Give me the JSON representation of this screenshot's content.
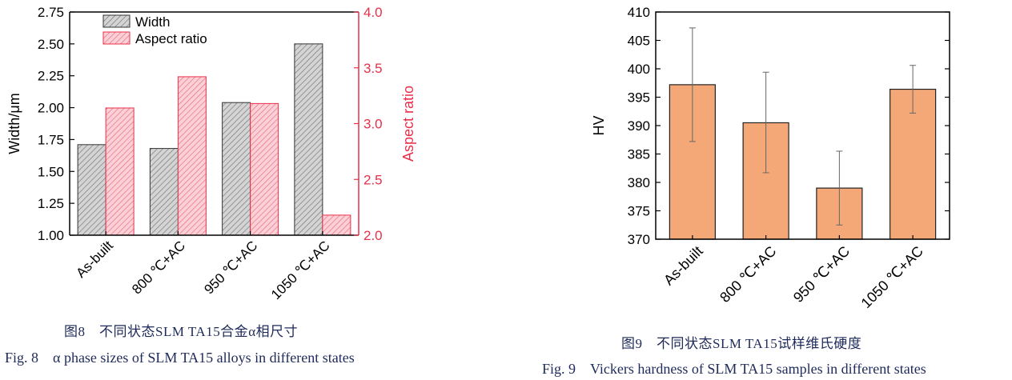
{
  "figure8": {
    "caption_zh": "图8　不同状态SLM TA15合金α相尺寸",
    "caption_en": "Fig. 8　α phase sizes of SLM TA15 alloys in different states",
    "chart_data": {
      "type": "bar",
      "categories": [
        "As-built",
        "800 ℃+AC",
        "950 ℃+AC",
        "1050 ℃+AC"
      ],
      "series": [
        {
          "name": "Width",
          "values": [
            1.71,
            1.68,
            2.04,
            2.5
          ],
          "axis": "left",
          "color": "#555555",
          "hatch": "gray-diagonal"
        },
        {
          "name": "Aspect ratio",
          "values": [
            3.14,
            3.42,
            3.18,
            2.18
          ],
          "axis": "right",
          "color": "#e8304a",
          "hatch": "red-diagonal"
        }
      ],
      "ylabel": "Width/μm",
      "y2label": "Aspect ratio",
      "ylim": [
        1.0,
        2.75
      ],
      "y2lim": [
        2.0,
        4.0
      ],
      "yticks": [
        "1.00",
        "1.25",
        "1.50",
        "1.75",
        "2.00",
        "2.25",
        "2.50",
        "2.75"
      ],
      "y2ticks": [
        "2.0",
        "2.5",
        "3.0",
        "3.5",
        "4.0"
      ],
      "legend": "top-left",
      "grid": false
    }
  },
  "figure9": {
    "caption_zh": "图9　不同状态SLM TA15试样维氏硬度",
    "caption_en": "Fig. 9　Vickers hardness of SLM TA15 samples in different states",
    "chart_data": {
      "type": "bar",
      "categories": [
        "As-built",
        "800 ℃+AC",
        "950 ℃+AC",
        "1050 ℃+AC"
      ],
      "values": [
        397.2,
        390.5,
        379.0,
        396.4
      ],
      "error_upper": [
        407.2,
        399.4,
        385.5,
        400.6
      ],
      "error_lower": [
        387.2,
        381.7,
        372.5,
        392.2
      ],
      "ylabel": "HV",
      "ylim": [
        370,
        410
      ],
      "yticks": [
        "370",
        "375",
        "380",
        "385",
        "390",
        "395",
        "400",
        "405",
        "410"
      ],
      "bar_color": "#f4a878",
      "grid": false
    }
  }
}
